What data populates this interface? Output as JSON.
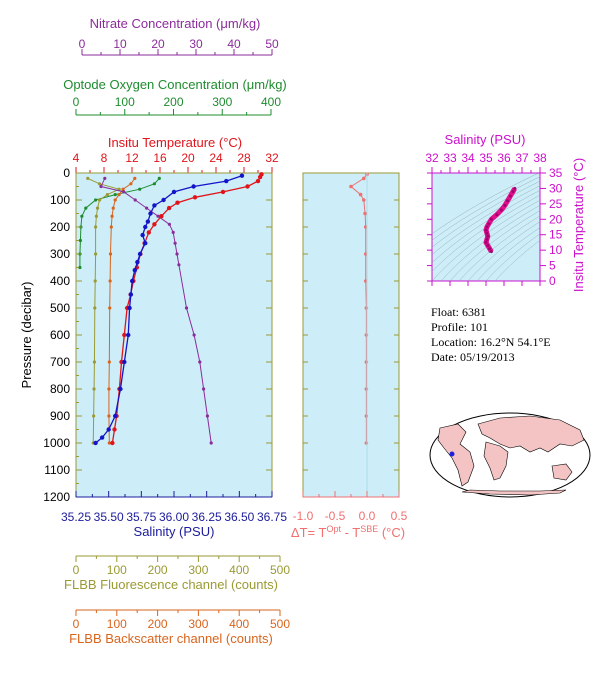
{
  "axes": {
    "nitrate": {
      "label": "Nitrate Concentration (μm/kg)",
      "ticks": [
        "0",
        "10",
        "20",
        "30",
        "40",
        "50"
      ],
      "range": [
        0,
        50
      ],
      "color": "#8b2c9b"
    },
    "oxygen": {
      "label": "Optode Oxygen Concentration (μm/kg)",
      "ticks": [
        "0",
        "100",
        "200",
        "300",
        "400"
      ],
      "range": [
        0,
        400
      ],
      "color": "#1e8c2e"
    },
    "temperature": {
      "label": "Insitu Temperature (°C)",
      "ticks": [
        "4",
        "8",
        "12",
        "16",
        "20",
        "24",
        "28",
        "32"
      ],
      "range": [
        4,
        32
      ],
      "color": "#e0141a"
    },
    "salinity": {
      "label": "Salinity (PSU)",
      "ticks": [
        "35.25",
        "35.50",
        "35.75",
        "36.00",
        "36.25",
        "36.50",
        "36.75"
      ],
      "range": [
        35.25,
        36.75
      ],
      "color": "#1c1c9c"
    },
    "pressure": {
      "label": "Pressure (decibar)",
      "ticks": [
        "0",
        "100",
        "200",
        "300",
        "400",
        "500",
        "600",
        "700",
        "800",
        "900",
        "1000",
        "1100",
        "1200"
      ],
      "range": [
        0,
        1200
      ],
      "color": "#000000"
    },
    "fluorescence": {
      "label": "FLBB Fluorescence channel (counts)",
      "ticks": [
        "0",
        "100",
        "200",
        "300",
        "400",
        "500"
      ],
      "range": [
        0,
        500
      ],
      "color": "#9a9a34"
    },
    "backscatter": {
      "label": "FLBB Backscatter channel (counts)",
      "ticks": [
        "0",
        "100",
        "200",
        "300",
        "400",
        "500"
      ],
      "range": [
        0,
        500
      ],
      "color": "#d9641c"
    },
    "delta": {
      "label_prefix": "ΔT= T",
      "label_sup1": "Opt",
      "label_mid": " - T",
      "label_sup2": "SBE",
      "label_suffix": " (°C)",
      "ticks": [
        "-1.0",
        "-0.5",
        "0.0",
        "0.5"
      ],
      "range": [
        -1.0,
        0.5
      ],
      "color": "#f07070"
    },
    "ts_salinity": {
      "label": "Salinity (PSU)",
      "ticks": [
        "32",
        "33",
        "34",
        "35",
        "36",
        "37",
        "38"
      ],
      "range": [
        32,
        38
      ],
      "color": "#cc10cc"
    },
    "ts_temperature": {
      "label": "Insitu Temperature (°C)",
      "ticks": [
        "0",
        "5",
        "10",
        "15",
        "20",
        "25",
        "30",
        "35"
      ],
      "range": [
        0,
        35
      ],
      "color": "#cc10cc"
    }
  },
  "info": {
    "float": "Float:  6381",
    "profile": "Profile:  101",
    "location": "Location:  16.2°N  54.1°E",
    "date": "Date:  05/19/2013"
  },
  "colors": {
    "plot_bg": "#cdeef8",
    "map_land": "#f4c4c4",
    "map_ocean": "#ffffff",
    "float_marker": "#2020e0"
  },
  "chart_data": {
    "type": "line",
    "y_axis": "pressure",
    "ylim": [
      1200,
      0
    ],
    "series": [
      {
        "key": "temperature",
        "color": "#e0141a",
        "x": [
          30.5,
          30.3,
          30.0,
          28.5,
          25.0,
          21.0,
          18.5,
          17.3,
          16.2,
          15.2,
          14.4,
          13.8,
          13.2,
          12.7,
          12.2,
          11.8,
          11.3,
          10.9,
          10.5,
          10.2,
          9.8,
          9.5,
          9.2
        ],
        "p": [
          5,
          15,
          30,
          50,
          70,
          90,
          110,
          130,
          160,
          190,
          220,
          260,
          300,
          350,
          400,
          450,
          500,
          600,
          700,
          800,
          900,
          950,
          1000
        ]
      },
      {
        "key": "salinity",
        "color": "#1414c8",
        "x": [
          36.52,
          36.4,
          36.15,
          36.0,
          35.92,
          35.85,
          35.82,
          35.8,
          35.78,
          35.76,
          35.78,
          35.74,
          35.72,
          35.7,
          35.68,
          35.67,
          35.66,
          35.65,
          35.62,
          35.59,
          35.55,
          35.5,
          35.45,
          35.4
        ],
        "p": [
          10,
          30,
          50,
          70,
          100,
          120,
          150,
          180,
          200,
          230,
          260,
          300,
          330,
          360,
          400,
          450,
          500,
          600,
          700,
          800,
          900,
          950,
          980,
          1000
        ]
      },
      {
        "key": "nitrate",
        "color": "#8b2c9b",
        "x": [
          6,
          5,
          11,
          14,
          17,
          20,
          23,
          24,
          24.5,
          25,
          25.5,
          27.5,
          29.5,
          31,
          32,
          33,
          34
        ],
        "p": [
          20,
          50,
          70,
          100,
          130,
          160,
          190,
          220,
          260,
          300,
          340,
          500,
          600,
          700,
          800,
          900,
          1000
        ]
      },
      {
        "key": "oxygen",
        "color": "#1e8c2e",
        "x": [
          170,
          160,
          130,
          80,
          40,
          20,
          12,
          10,
          9,
          8,
          8
        ],
        "p": [
          20,
          40,
          60,
          80,
          100,
          130,
          160,
          200,
          250,
          300,
          350
        ]
      },
      {
        "key": "fluorescence",
        "color": "#9a9a34",
        "x": [
          30,
          60,
          110,
          80,
          60,
          55,
          52,
          50,
          50,
          49,
          48,
          47,
          46,
          45,
          44
        ],
        "p": [
          20,
          40,
          60,
          80,
          100,
          130,
          160,
          200,
          300,
          400,
          500,
          700,
          800,
          900,
          1000
        ]
      },
      {
        "key": "backscatter",
        "color": "#d9641c",
        "x": [
          150,
          140,
          120,
          110,
          100,
          95,
          92,
          90,
          88,
          87,
          86,
          85,
          84,
          84,
          85
        ],
        "p": [
          20,
          40,
          60,
          80,
          100,
          130,
          160,
          200,
          300,
          400,
          500,
          700,
          800,
          900,
          1000
        ]
      },
      {
        "key": "delta",
        "color": "#f07070",
        "x": [
          0.0,
          -0.05,
          -0.25,
          -0.1,
          -0.05,
          -0.03,
          -0.02,
          -0.02,
          -0.02,
          -0.01,
          -0.01,
          -0.01,
          -0.01,
          -0.01,
          -0.01
        ],
        "p": [
          5,
          20,
          50,
          80,
          100,
          150,
          200,
          300,
          400,
          500,
          600,
          700,
          800,
          900,
          1000
        ]
      },
      {
        "key": "ts",
        "color": "#e0108c",
        "x": [
          35.3,
          35.2,
          35.1,
          35.0,
          35.05,
          35.1,
          35.05,
          35.0,
          35.05,
          35.15,
          35.3,
          35.6,
          35.85,
          36.05,
          36.2,
          36.35,
          36.5,
          36.6
        ],
        "y": [
          9.5,
          10.5,
          11.5,
          12.5,
          13.5,
          14.5,
          15.5,
          16.5,
          17.5,
          18.5,
          20,
          21.5,
          23,
          24.5,
          26,
          27.5,
          29,
          30
        ]
      }
    ]
  }
}
